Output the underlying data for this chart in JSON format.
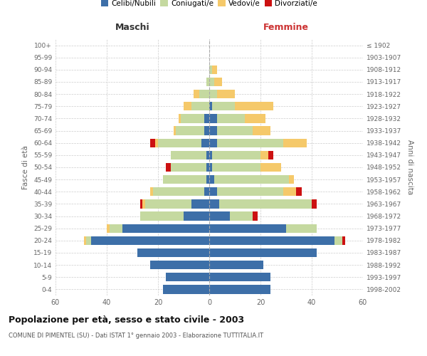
{
  "age_groups": [
    "0-4",
    "5-9",
    "10-14",
    "15-19",
    "20-24",
    "25-29",
    "30-34",
    "35-39",
    "40-44",
    "45-49",
    "50-54",
    "55-59",
    "60-64",
    "65-69",
    "70-74",
    "75-79",
    "80-84",
    "85-89",
    "90-94",
    "95-99",
    "100+"
  ],
  "birth_years": [
    "1998-2002",
    "1993-1997",
    "1988-1992",
    "1983-1987",
    "1978-1982",
    "1973-1977",
    "1968-1972",
    "1963-1967",
    "1958-1962",
    "1953-1957",
    "1948-1952",
    "1943-1947",
    "1938-1942",
    "1933-1937",
    "1928-1932",
    "1923-1927",
    "1918-1922",
    "1913-1917",
    "1908-1912",
    "1903-1907",
    "≤ 1902"
  ],
  "colors": {
    "celibi": "#3d6fa8",
    "coniugati": "#c5d9a0",
    "vedovi": "#f5c96a",
    "divorziati": "#cc1111"
  },
  "maschi": {
    "celibi": [
      18,
      17,
      23,
      28,
      46,
      34,
      10,
      7,
      2,
      1,
      1,
      1,
      3,
      2,
      2,
      0,
      0,
      0,
      0,
      0,
      0
    ],
    "coniugati": [
      0,
      0,
      0,
      0,
      2,
      5,
      17,
      18,
      20,
      17,
      14,
      14,
      17,
      11,
      9,
      7,
      4,
      1,
      0,
      0,
      0
    ],
    "vedovi": [
      0,
      0,
      0,
      0,
      1,
      1,
      0,
      1,
      1,
      0,
      0,
      0,
      1,
      1,
      1,
      3,
      2,
      0,
      0,
      0,
      0
    ],
    "divorziati": [
      0,
      0,
      0,
      0,
      0,
      0,
      0,
      1,
      0,
      0,
      2,
      0,
      2,
      0,
      0,
      0,
      0,
      0,
      0,
      0,
      0
    ]
  },
  "femmine": {
    "celibi": [
      24,
      24,
      21,
      42,
      49,
      30,
      8,
      4,
      3,
      2,
      1,
      1,
      3,
      3,
      3,
      1,
      0,
      0,
      0,
      0,
      0
    ],
    "coniugati": [
      0,
      0,
      0,
      0,
      3,
      12,
      9,
      36,
      26,
      29,
      19,
      19,
      26,
      14,
      11,
      9,
      3,
      2,
      1,
      0,
      0
    ],
    "vedovi": [
      0,
      0,
      0,
      0,
      0,
      0,
      0,
      0,
      5,
      2,
      8,
      3,
      9,
      7,
      8,
      15,
      7,
      3,
      2,
      0,
      0
    ],
    "divorziati": [
      0,
      0,
      0,
      0,
      1,
      0,
      2,
      2,
      2,
      0,
      0,
      2,
      0,
      0,
      0,
      0,
      0,
      0,
      0,
      0,
      0
    ]
  },
  "title": "Popolazione per età, sesso e stato civile - 2003",
  "subtitle": "COMUNE DI PIMENTEL (SU) - Dati ISTAT 1° gennaio 2003 - Elaborazione TUTTITALIA.IT",
  "xlabel_left": "Maschi",
  "xlabel_right": "Femmine",
  "ylabel_left": "Fasce di età",
  "ylabel_right": "Anni di nascita",
  "xlim": 60,
  "bg_color": "#ffffff",
  "grid_color": "#cccccc"
}
